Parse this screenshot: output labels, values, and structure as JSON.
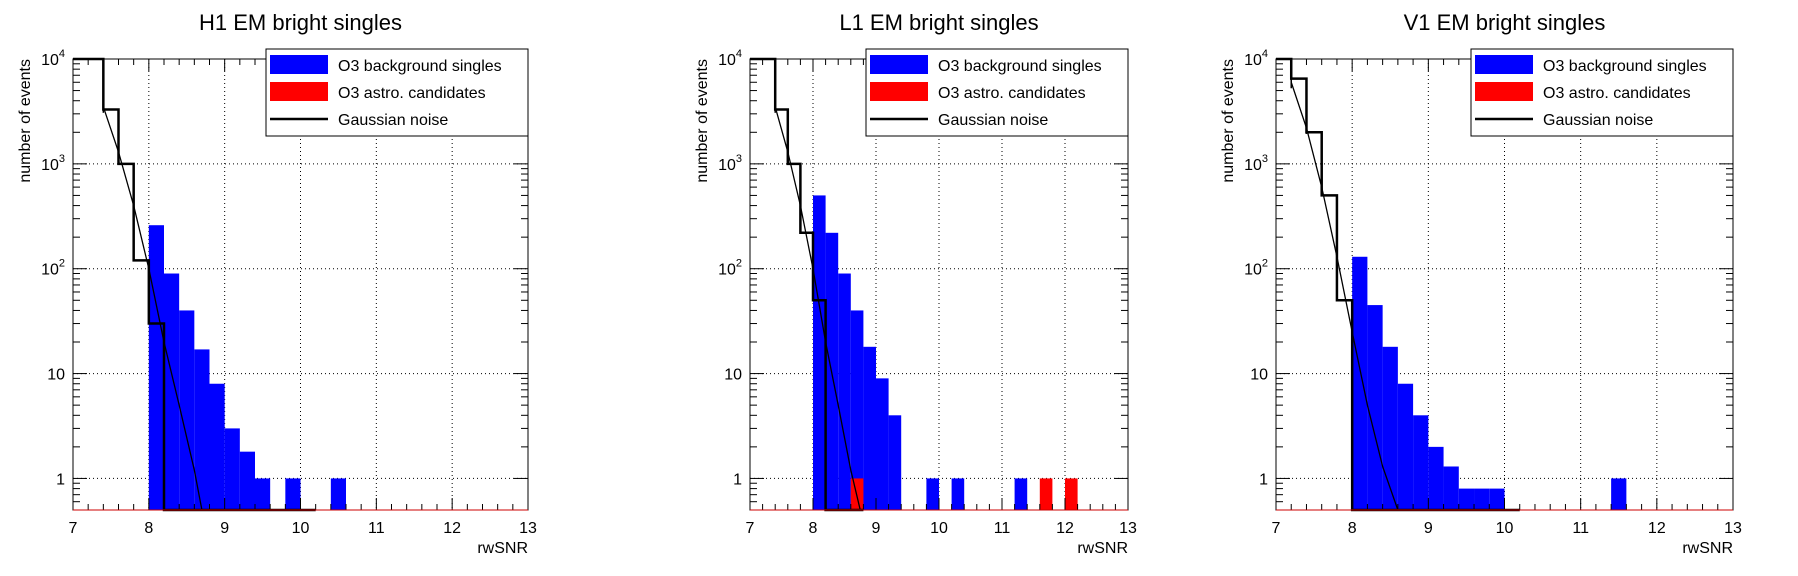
{
  "chart_data": [
    {
      "type": "bar",
      "title": "H1 EM bright singles",
      "xlabel": "rwSNR",
      "ylabel": "number of events",
      "xlim": [
        7,
        13
      ],
      "ylim": [
        0.5,
        10000
      ],
      "yscale": "log",
      "grid": true,
      "legend_position": "top-right",
      "legend": [
        "O3 background singles",
        "O3 astro. candidates",
        "Gaussian noise"
      ],
      "x_ticks": [
        "7",
        "8",
        "9",
        "10",
        "11",
        "12",
        "13"
      ],
      "y_ticks": [
        {
          "base": "1",
          "exp": ""
        },
        {
          "base": "10",
          "exp": ""
        },
        {
          "base": "10",
          "exp": "2"
        },
        {
          "base": "10",
          "exp": "3"
        },
        {
          "base": "10",
          "exp": "4"
        }
      ],
      "bin_width": 0.2,
      "series": [
        {
          "name": "O3 background singles",
          "color": "#0000ff",
          "bins": [
            [
              8.0,
              260
            ],
            [
              8.2,
              90
            ],
            [
              8.4,
              40
            ],
            [
              8.6,
              17
            ],
            [
              8.8,
              8
            ],
            [
              9.0,
              3
            ],
            [
              9.2,
              1.8
            ],
            [
              9.4,
              1
            ],
            [
              9.8,
              1
            ],
            [
              10.4,
              1
            ]
          ]
        },
        {
          "name": "O3 astro. candidates",
          "color": "#ff0000",
          "bins": []
        },
        {
          "name": "Gaussian noise",
          "color": "#000000",
          "steps": [
            [
              7.0,
              10000
            ],
            [
              7.4,
              3300
            ],
            [
              7.6,
              1000
            ],
            [
              7.8,
              120
            ],
            [
              8.0,
              30
            ],
            [
              8.2,
              0.5
            ],
            [
              10.2,
              0.5
            ]
          ],
          "curve": [
            [
              7.4,
              3500
            ],
            [
              7.6,
              1300
            ],
            [
              7.8,
              400
            ],
            [
              8.0,
              100
            ],
            [
              8.2,
              20
            ],
            [
              8.4,
              5
            ],
            [
              8.6,
              1.2
            ],
            [
              8.7,
              0.5
            ]
          ]
        }
      ]
    },
    {
      "type": "bar",
      "title": "L1 EM bright singles",
      "xlabel": "rwSNR",
      "ylabel": "number of events",
      "xlim": [
        7,
        13
      ],
      "ylim": [
        0.5,
        10000
      ],
      "yscale": "log",
      "grid": true,
      "legend_position": "top-right",
      "legend": [
        "O3 background singles",
        "O3 astro. candidates",
        "Gaussian noise"
      ],
      "x_ticks": [
        "7",
        "8",
        "9",
        "10",
        "11",
        "12",
        "13"
      ],
      "y_ticks": [
        {
          "base": "1",
          "exp": ""
        },
        {
          "base": "10",
          "exp": ""
        },
        {
          "base": "10",
          "exp": "2"
        },
        {
          "base": "10",
          "exp": "3"
        },
        {
          "base": "10",
          "exp": "4"
        }
      ],
      "bin_width": 0.2,
      "series": [
        {
          "name": "O3 background singles",
          "color": "#0000ff",
          "bins": [
            [
              8.0,
              500
            ],
            [
              8.2,
              220
            ],
            [
              8.4,
              90
            ],
            [
              8.6,
              40
            ],
            [
              8.8,
              18
            ],
            [
              9.0,
              9
            ],
            [
              9.2,
              4
            ],
            [
              9.8,
              1
            ],
            [
              10.2,
              1
            ],
            [
              11.2,
              1
            ]
          ]
        },
        {
          "name": "O3 astro. candidates",
          "color": "#ff0000",
          "bins": [
            [
              8.6,
              1
            ],
            [
              11.6,
              1
            ],
            [
              12.0,
              1
            ]
          ]
        },
        {
          "name": "Gaussian noise",
          "color": "#000000",
          "steps": [
            [
              7.0,
              10000
            ],
            [
              7.4,
              3300
            ],
            [
              7.6,
              1000
            ],
            [
              7.8,
              220
            ],
            [
              8.0,
              50
            ],
            [
              8.2,
              0.5
            ],
            [
              8.8,
              0.5
            ]
          ],
          "curve": [
            [
              7.4,
              3500
            ],
            [
              7.6,
              1300
            ],
            [
              7.8,
              400
            ],
            [
              8.0,
              100
            ],
            [
              8.2,
              20
            ],
            [
              8.4,
              5
            ],
            [
              8.6,
              1.2
            ],
            [
              8.75,
              0.5
            ]
          ]
        }
      ]
    },
    {
      "type": "bar",
      "title": "V1 EM bright singles",
      "xlabel": "rwSNR",
      "ylabel": "number of events",
      "xlim": [
        7,
        13
      ],
      "ylim": [
        0.5,
        10000
      ],
      "yscale": "log",
      "grid": true,
      "legend_position": "top-right",
      "legend": [
        "O3 background singles",
        "O3 astro. candidates",
        "Gaussian noise"
      ],
      "x_ticks": [
        "7",
        "8",
        "9",
        "10",
        "11",
        "12",
        "13"
      ],
      "y_ticks": [
        {
          "base": "1",
          "exp": ""
        },
        {
          "base": "10",
          "exp": ""
        },
        {
          "base": "10",
          "exp": "2"
        },
        {
          "base": "10",
          "exp": "3"
        },
        {
          "base": "10",
          "exp": "4"
        }
      ],
      "bin_width": 0.2,
      "series": [
        {
          "name": "O3 background singles",
          "color": "#0000ff",
          "bins": [
            [
              8.0,
              130
            ],
            [
              8.2,
              45
            ],
            [
              8.4,
              18
            ],
            [
              8.6,
              8
            ],
            [
              8.8,
              4
            ],
            [
              9.0,
              2
            ],
            [
              9.2,
              1.3
            ],
            [
              9.4,
              0.8
            ],
            [
              9.6,
              0.8
            ],
            [
              9.8,
              0.8
            ],
            [
              11.4,
              1
            ]
          ]
        },
        {
          "name": "O3 astro. candidates",
          "color": "#ff0000",
          "bins": []
        },
        {
          "name": "Gaussian noise",
          "color": "#000000",
          "steps": [
            [
              7.0,
              10000
            ],
            [
              7.2,
              6500
            ],
            [
              7.4,
              2000
            ],
            [
              7.6,
              500
            ],
            [
              7.8,
              50
            ],
            [
              8.0,
              0.5
            ],
            [
              10.2,
              0.5
            ]
          ],
          "curve": [
            [
              7.2,
              6000
            ],
            [
              7.4,
              2200
            ],
            [
              7.6,
              600
            ],
            [
              7.8,
              130
            ],
            [
              8.0,
              25
            ],
            [
              8.2,
              5
            ],
            [
              8.4,
              1.3
            ],
            [
              8.6,
              0.5
            ]
          ]
        }
      ]
    }
  ]
}
